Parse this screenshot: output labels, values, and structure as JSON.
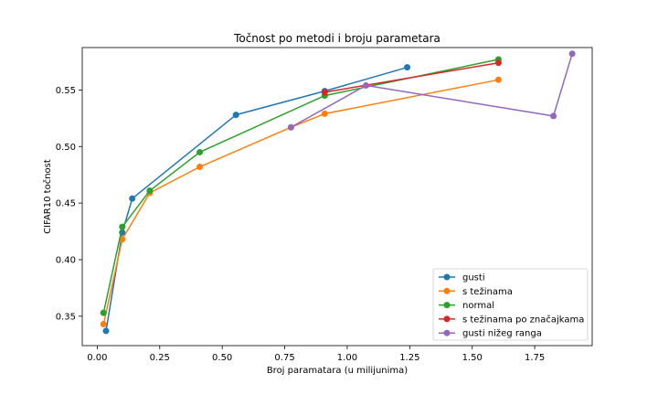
{
  "chart_data": {
    "type": "line",
    "title": "Točnost po metodi i broju parametara",
    "xlabel": "Broj paramatara (u milijunima)",
    "ylabel": "CIFAR10 točnost",
    "xlim": [
      -0.06,
      1.98
    ],
    "ylim": [
      0.324,
      0.5875
    ],
    "xticks": [
      0.0,
      0.25,
      0.5,
      0.75,
      1.0,
      1.25,
      1.5,
      1.75
    ],
    "xtick_labels": [
      "0.00",
      "0.25",
      "0.50",
      "0.75",
      "1.00",
      "1.25",
      "1.50",
      "1.75"
    ],
    "yticks": [
      0.35,
      0.4,
      0.45,
      0.5,
      0.55
    ],
    "ytick_labels": [
      "0.35",
      "0.40",
      "0.45",
      "0.50",
      "0.55"
    ],
    "grid": false,
    "legend_position": "bottom-right",
    "series": [
      {
        "name": "gusti",
        "color": "#1f77b4",
        "points": [
          [
            0.035,
            0.337
          ],
          [
            0.1,
            0.424
          ],
          [
            0.14,
            0.454
          ],
          [
            0.555,
            0.528
          ],
          [
            0.91,
            0.549
          ],
          [
            1.24,
            0.57
          ]
        ]
      },
      {
        "name": "s težinama",
        "color": "#ff7f0e",
        "points": [
          [
            0.025,
            0.343
          ],
          [
            0.1,
            0.418
          ],
          [
            0.21,
            0.459
          ],
          [
            0.41,
            0.482
          ],
          [
            0.775,
            0.517
          ],
          [
            0.91,
            0.529
          ],
          [
            1.605,
            0.559
          ]
        ]
      },
      {
        "name": "normal",
        "color": "#2ca02c",
        "points": [
          [
            0.025,
            0.353
          ],
          [
            0.1,
            0.429
          ],
          [
            0.21,
            0.461
          ],
          [
            0.41,
            0.495
          ],
          [
            0.91,
            0.545
          ],
          [
            1.605,
            0.577
          ]
        ]
      },
      {
        "name": "s težinama po značajkama",
        "color": "#d62728",
        "points": [
          [
            0.91,
            0.548
          ],
          [
            1.605,
            0.574
          ]
        ]
      },
      {
        "name": "gusti nižeg ranga",
        "color": "#9467bd",
        "points": [
          [
            0.775,
            0.517
          ],
          [
            1.075,
            0.554
          ],
          [
            1.825,
            0.527
          ],
          [
            1.9,
            0.582
          ]
        ]
      }
    ]
  }
}
